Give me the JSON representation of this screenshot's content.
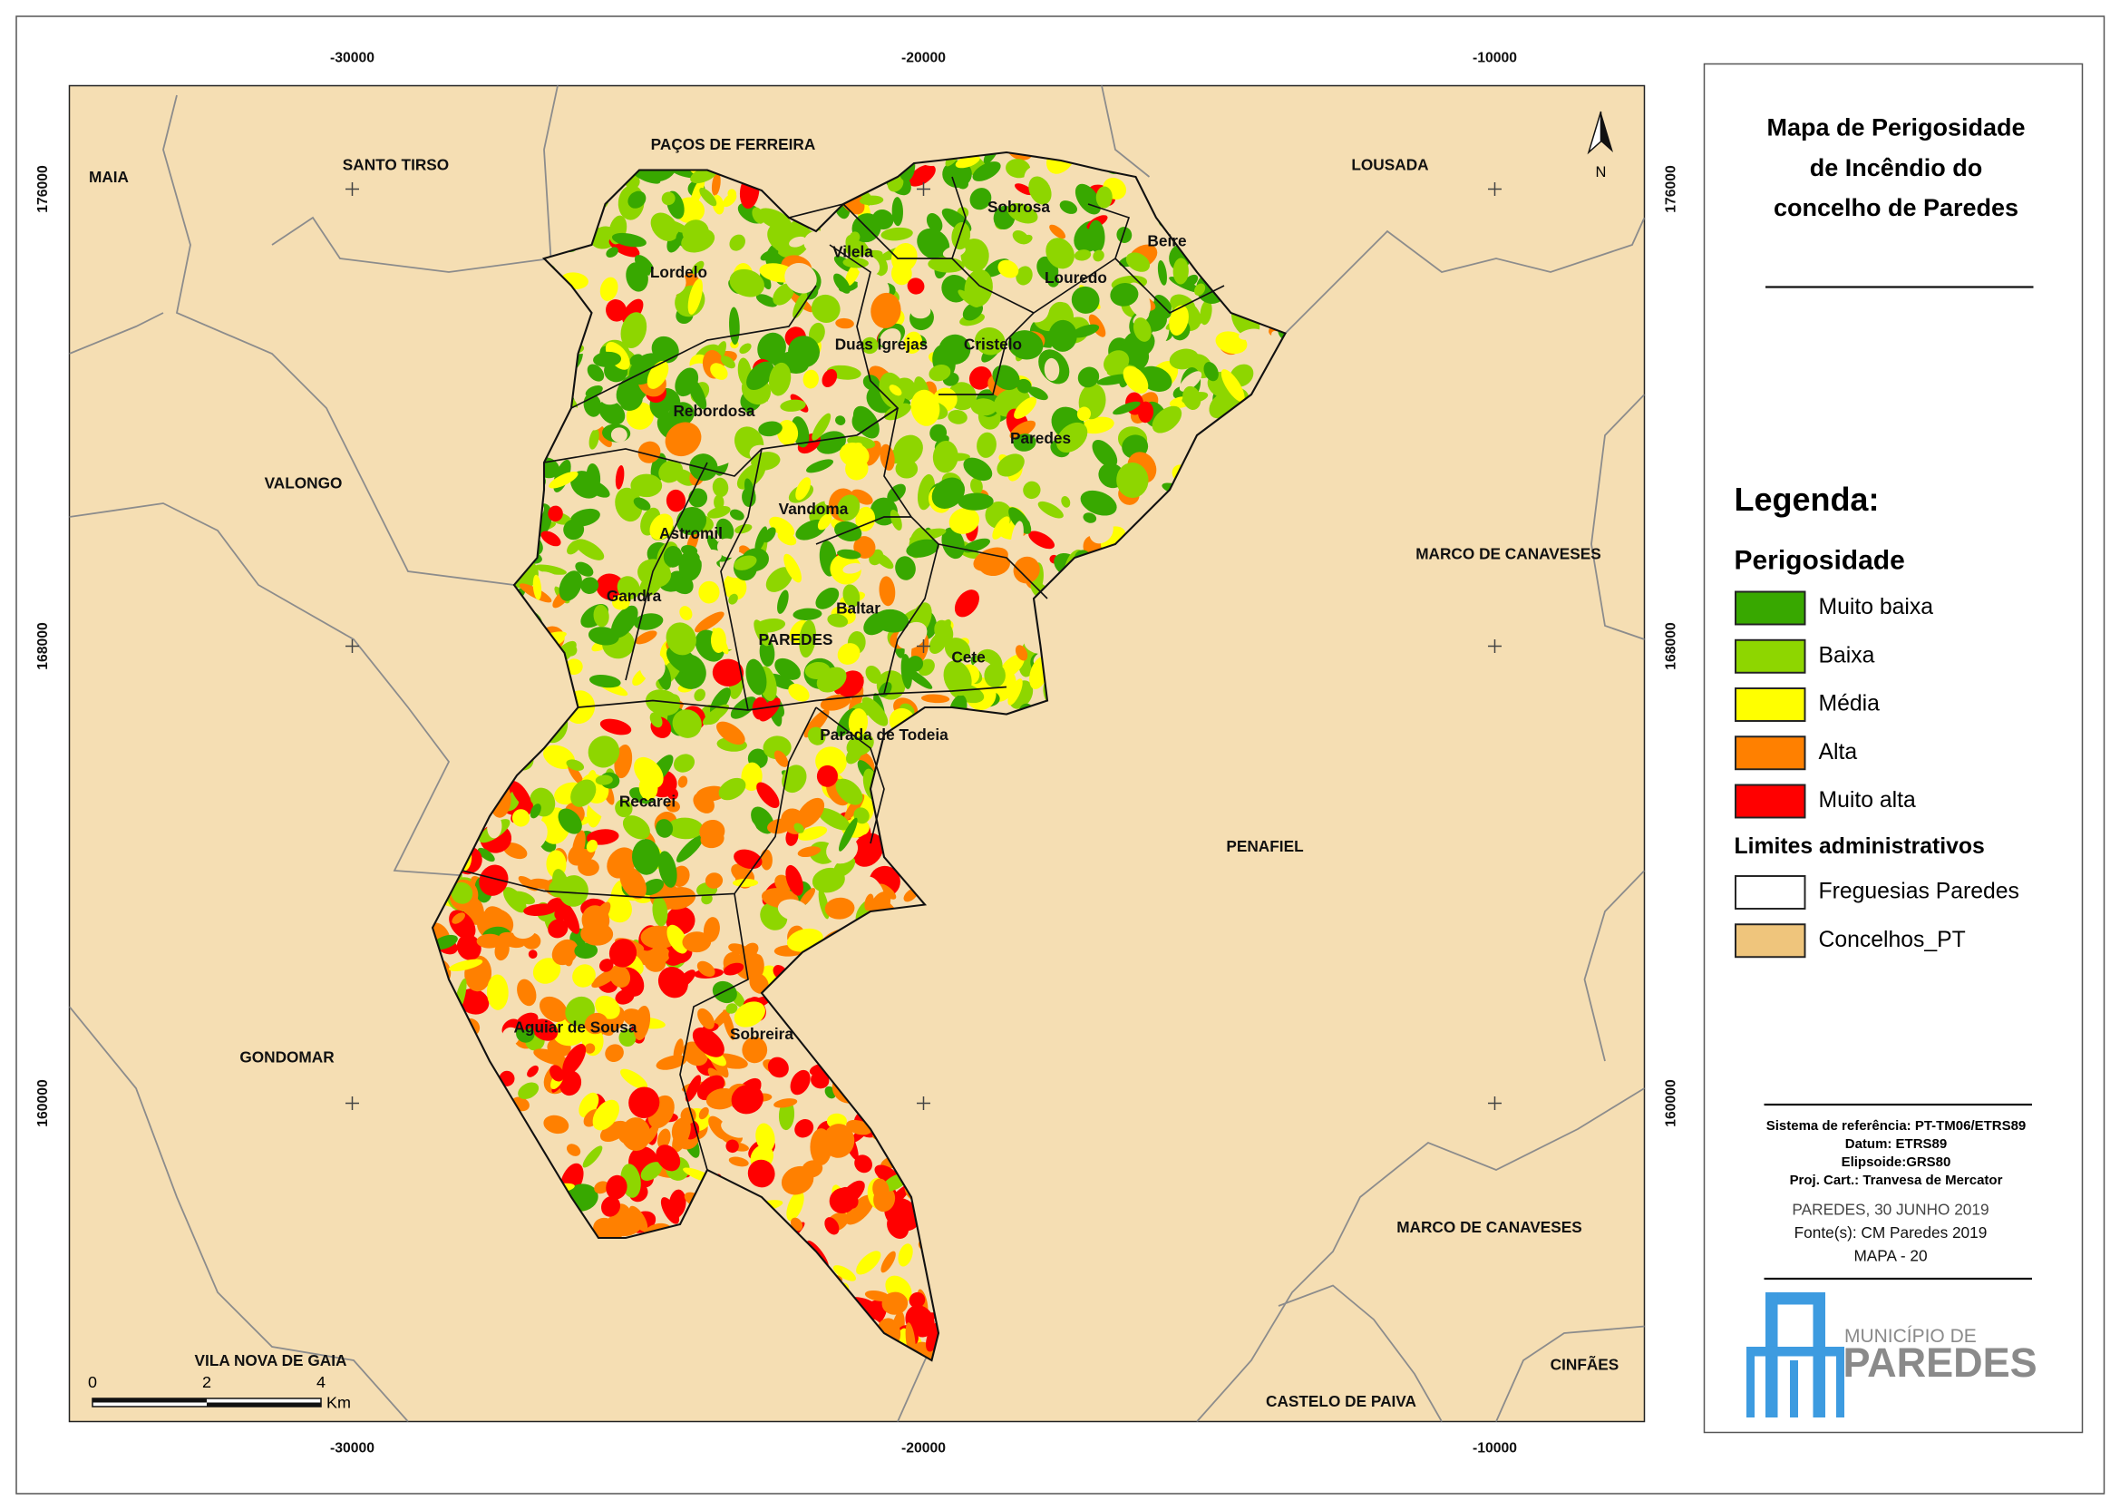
{
  "title": [
    "Mapa de Perigosidade",
    "de Incêndio do",
    "concelho de Paredes"
  ],
  "grid": {
    "x_ticks": [
      -30000,
      -20000,
      -10000
    ],
    "y_ticks": [
      176000,
      168000,
      160000
    ]
  },
  "scale_bar": {
    "ticks": [
      0,
      2,
      4
    ],
    "unit": "Km"
  },
  "north": "N",
  "municipalities": [
    "MAIA",
    "SANTO TIRSO",
    "PAÇOS DE FERREIRA",
    "LOUSADA",
    "VALONGO",
    "MARCO DE CANAVESES",
    "PENAFIEL",
    "GONDOMAR",
    "MARCO DE CANAVESES",
    "VILA NOVA DE GAIA",
    "CASTELO DE PAIVA",
    "CINFÃES"
  ],
  "parishes": [
    "Sobrosa",
    "Beire",
    "Lordelo",
    "Vilela",
    "Louredo",
    "Duas Igrejas",
    "Cristelo",
    "Rebordosa",
    "Paredes",
    "Vandoma",
    "Astromil",
    "Gandra",
    "Baltar",
    "PAREDES",
    "Cete",
    "Parada de Todeia",
    "Recarei",
    "Aguiar de Sousa",
    "Sobreira"
  ],
  "legend": {
    "title": "Legenda:",
    "hazard_title": "Perigosidade",
    "hazard_classes": [
      {
        "label": "Muito baixa",
        "color": "#38a800"
      },
      {
        "label": "Baixa",
        "color": "#8ed600"
      },
      {
        "label": "Média",
        "color": "#ffff00"
      },
      {
        "label": "Alta",
        "color": "#ff8000"
      },
      {
        "label": "Muito alta",
        "color": "#ff0000"
      }
    ],
    "admin_title": "Limites administrativos",
    "admin": [
      {
        "label": "Freguesias Paredes",
        "color": "#ffffff"
      },
      {
        "label": "Concelhos_PT",
        "color": "#efc57c"
      }
    ]
  },
  "info": [
    "Sistema de referência: PT-TM06/ETRS89",
    "Datum: ETRS89",
    "Elipsoide:GRS80",
    "Proj. Cart.: Tranvesa de Mercator"
  ],
  "credits": [
    "PAREDES, 30 JUNHO 2019",
    "Fonte(s): CM Paredes 2019",
    "MAPA - 20"
  ],
  "logo": [
    "MUNICÍPIO DE",
    "PAREDES"
  ]
}
